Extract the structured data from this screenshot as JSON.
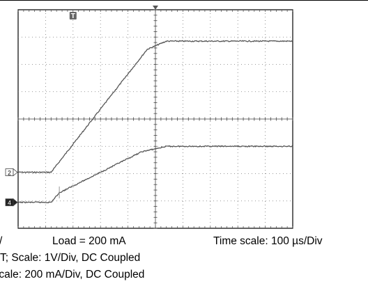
{
  "chart_data": {
    "type": "line",
    "title": "",
    "xlabel": "",
    "ylabel": "",
    "grid": true,
    "x_range_div": [
      0,
      10
    ],
    "y_range_div": [
      0,
      8
    ],
    "trigger_marker": "T",
    "series": [
      {
        "channel": "2",
        "color": "#555555",
        "x_div": [
          0,
          1.2,
          4.7,
          5.4,
          10
        ],
        "y_div": [
          2.05,
          2.05,
          6.55,
          6.85,
          6.85
        ]
      },
      {
        "channel": "4",
        "color": "#555555",
        "x_div": [
          0,
          1.2,
          1.5,
          4.5,
          5.4,
          10
        ],
        "y_div": [
          0.95,
          0.95,
          1.3,
          2.8,
          3.0,
          3.0
        ]
      }
    ]
  },
  "captions": {
    "line1_left": "/",
    "line1_mid": "Load = 200 mA",
    "line1_right": "Time scale: 100 µs/Div",
    "line2": "T; Scale: 1V/Div, DC Coupled",
    "line3": "Scale: 200 mA/Div, DC Coupled"
  }
}
